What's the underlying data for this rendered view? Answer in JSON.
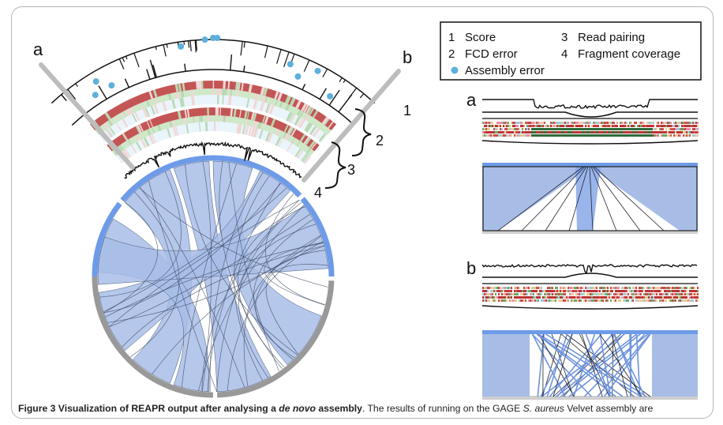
{
  "panel_letters": {
    "a": "a",
    "b": "b"
  },
  "track_numbers": [
    "1",
    "2",
    "3",
    "4"
  ],
  "legend": {
    "items": [
      {
        "num": "1",
        "label": "Score"
      },
      {
        "num": "2",
        "label": "FCD error"
      },
      {
        "num": "3",
        "label": "Read pairing"
      },
      {
        "num": "4",
        "label": "Fragment coverage"
      }
    ],
    "assembly_error_label": "Assembly error"
  },
  "colors": {
    "contig_blue": "#6e9be8",
    "contig_gray": "#999999",
    "link_fill": "#a8bde6",
    "error_dot": "#5eb0dc",
    "heat_red": "#c45555",
    "heat_green": "#cfe8c8"
  },
  "caption": {
    "figure_label": "Figure 3",
    "title_pre": "Visualization of REAPR output after analysing a ",
    "title_italic": "de novo",
    "title_post": " assembly",
    "text_pre": ". The results of running on the GAGE ",
    "text_italic": "S. aureus",
    "text_post": " Velvet assembly are"
  }
}
